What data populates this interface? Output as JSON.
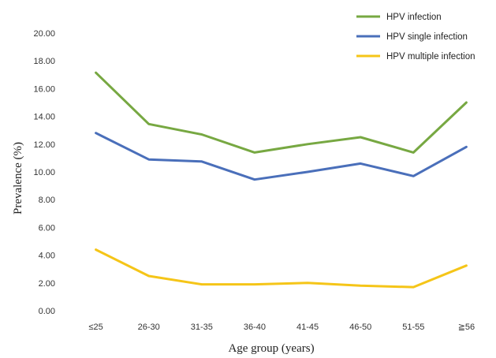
{
  "chart_data": {
    "type": "line",
    "xlabel": "Age group (years)",
    "ylabel": "Prevalence (%)",
    "ylim": [
      0,
      20
    ],
    "yticks": [
      "0.00",
      "2.00",
      "4.00",
      "6.00",
      "8.00",
      "10.00",
      "12.00",
      "14.00",
      "16.00",
      "18.00",
      "20.00"
    ],
    "categories": [
      "≤25",
      "26-30",
      "31-35",
      "36-40",
      "41-45",
      "46-50",
      "51-55",
      "≧56"
    ],
    "grid": false,
    "legend": "top-right",
    "series": [
      {
        "name": "HPV infection",
        "color": "#77a842",
        "values": [
          17.15,
          13.45,
          12.7,
          11.4,
          12.0,
          12.5,
          11.4,
          15.0
        ]
      },
      {
        "name": "HPV single infection",
        "color": "#4a6fba",
        "values": [
          12.8,
          10.9,
          10.75,
          9.45,
          10.0,
          10.6,
          9.7,
          11.8
        ]
      },
      {
        "name": "HPV multiple infection",
        "color": "#f5c518",
        "values": [
          4.4,
          2.5,
          1.9,
          1.9,
          2.0,
          1.8,
          1.7,
          3.25
        ]
      }
    ]
  }
}
